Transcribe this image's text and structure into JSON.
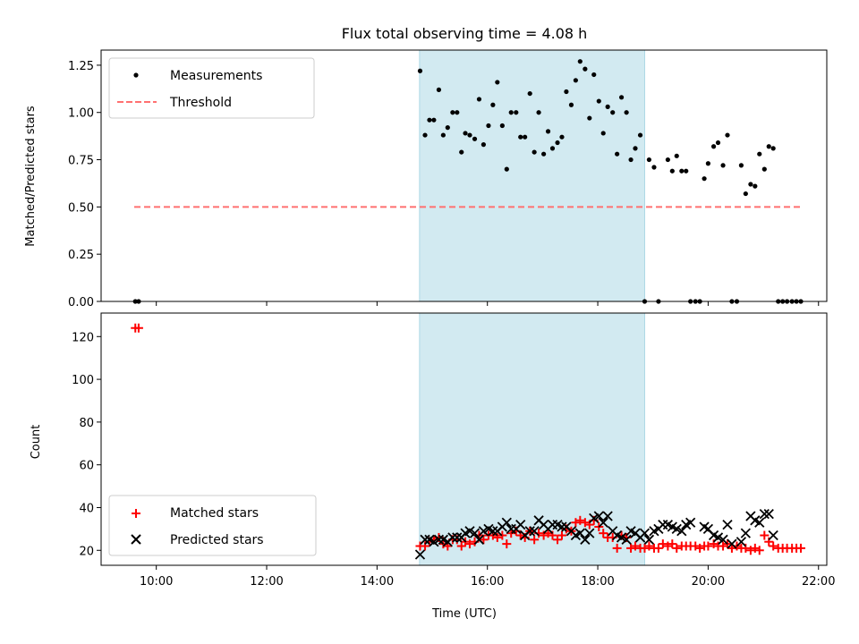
{
  "chart_data": [
    {
      "type": "scatter",
      "title": "Flux total observing time = 4.08 h",
      "xlabel": "",
      "ylabel": "Matched/Predicted stars",
      "xlim": [
        9.0,
        22.15
      ],
      "ylim": [
        0.0,
        1.33
      ],
      "xticks_hours": [
        10,
        12,
        14,
        16,
        18,
        20,
        22
      ],
      "yticks": [
        "0.00",
        "0.25",
        "0.50",
        "0.75",
        "1.00",
        "1.25"
      ],
      "ytick_values": [
        0.0,
        0.25,
        0.5,
        0.75,
        1.0,
        1.25
      ],
      "shaded_span_hours": [
        14.77,
        18.85
      ],
      "shade_color": "#add8e6",
      "legend": {
        "placement": "upper-left",
        "entries": [
          "Measurements",
          "Threshold"
        ]
      },
      "threshold": {
        "name": "Threshold",
        "value": 0.5,
        "x_range": [
          9.6,
          21.7
        ],
        "color": "#ff7070",
        "style": "dashed"
      },
      "series": [
        {
          "name": "Measurements",
          "marker": "dot",
          "color": "#000000",
          "x": [
            9.62,
            9.68,
            14.78,
            14.87,
            14.95,
            15.03,
            15.12,
            15.2,
            15.28,
            15.37,
            15.45,
            15.53,
            15.6,
            15.68,
            15.77,
            15.85,
            15.93,
            16.02,
            16.1,
            16.18,
            16.27,
            16.35,
            16.43,
            16.52,
            16.6,
            16.68,
            16.77,
            16.85,
            16.93,
            17.02,
            17.1,
            17.18,
            17.27,
            17.35,
            17.43,
            17.52,
            17.6,
            17.68,
            17.77,
            17.85,
            17.93,
            18.02,
            18.1,
            18.18,
            18.27,
            18.35,
            18.43,
            18.52,
            18.6,
            18.68,
            18.77,
            18.85,
            18.93,
            19.02,
            19.1,
            19.27,
            19.35,
            19.43,
            19.52,
            19.6,
            19.68,
            19.77,
            19.85,
            19.93,
            20.0,
            20.1,
            20.18,
            20.27,
            20.35,
            20.43,
            20.52,
            20.6,
            20.68,
            20.77,
            20.85,
            20.93,
            21.02,
            21.1,
            21.18,
            21.27,
            21.35,
            21.43,
            21.52,
            21.6,
            21.68
          ],
          "y": [
            0,
            0,
            1.22,
            0.88,
            0.96,
            0.96,
            1.12,
            0.88,
            0.92,
            1.0,
            1.0,
            0.79,
            0.89,
            0.88,
            0.86,
            1.07,
            0.83,
            0.93,
            1.04,
            1.16,
            0.93,
            0.7,
            1.0,
            1.0,
            0.87,
            0.87,
            1.1,
            0.79,
            1.0,
            0.78,
            0.9,
            0.81,
            0.84,
            0.87,
            1.11,
            1.04,
            1.17,
            1.27,
            1.23,
            0.97,
            1.2,
            1.06,
            0.89,
            1.03,
            1.0,
            0.78,
            1.08,
            1.0,
            0.75,
            0.81,
            0.88,
            0,
            0.75,
            0.71,
            0,
            0.75,
            0.69,
            0.77,
            0.69,
            0.69,
            0,
            0,
            0,
            0.65,
            0.73,
            0.82,
            0.84,
            0.72,
            0.88,
            0,
            0,
            0.72,
            0.57,
            0.62,
            0.61,
            0.78,
            0.7,
            0.82,
            0.81,
            0,
            0,
            0,
            0,
            0,
            0
          ]
        }
      ]
    },
    {
      "type": "scatter",
      "title": "",
      "xlabel": "Time (UTC)",
      "ylabel": "Count",
      "xlim": [
        9.0,
        22.15
      ],
      "ylim": [
        13,
        131
      ],
      "xticks_hours": [
        10,
        12,
        14,
        16,
        18,
        20,
        22
      ],
      "xtick_labels": [
        "10:00",
        "12:00",
        "14:00",
        "16:00",
        "18:00",
        "20:00",
        "22:00"
      ],
      "yticks": [
        "20",
        "40",
        "60",
        "80",
        "100",
        "120"
      ],
      "ytick_values": [
        20,
        40,
        60,
        80,
        100,
        120
      ],
      "shaded_span_hours": [
        14.77,
        18.85
      ],
      "shade_color": "#add8e6",
      "legend": {
        "placement": "lower-left",
        "entries": [
          "Matched stars",
          "Predicted stars"
        ]
      },
      "series": [
        {
          "name": "Matched stars",
          "marker": "plus",
          "color": "#ff0000",
          "x": [
            9.62,
            9.68,
            14.78,
            14.87,
            14.95,
            15.03,
            15.12,
            15.2,
            15.28,
            15.37,
            15.45,
            15.53,
            15.6,
            15.68,
            15.77,
            15.85,
            15.93,
            16.02,
            16.1,
            16.18,
            16.27,
            16.35,
            16.43,
            16.52,
            16.6,
            16.68,
            16.77,
            16.85,
            16.93,
            17.02,
            17.1,
            17.18,
            17.27,
            17.35,
            17.43,
            17.52,
            17.6,
            17.68,
            17.77,
            17.85,
            17.93,
            18.02,
            18.1,
            18.18,
            18.27,
            18.35,
            18.43,
            18.52,
            18.6,
            18.68,
            18.77,
            18.85,
            18.93,
            19.02,
            19.1,
            19.18,
            19.27,
            19.35,
            19.43,
            19.52,
            19.6,
            19.68,
            19.77,
            19.85,
            19.93,
            20.0,
            20.1,
            20.18,
            20.27,
            20.35,
            20.43,
            20.52,
            20.6,
            20.68,
            20.77,
            20.85,
            20.93,
            21.02,
            21.1,
            21.18,
            21.27,
            21.35,
            21.43,
            21.52,
            21.6,
            21.68
          ],
          "y": [
            124,
            124,
            22,
            22,
            24,
            25,
            26,
            23,
            22,
            25,
            25,
            22,
            24,
            23,
            24,
            27,
            25,
            27,
            27,
            26,
            27,
            23,
            28,
            29,
            27,
            26,
            29,
            25,
            28,
            27,
            28,
            27,
            25,
            27,
            30,
            29,
            33,
            34,
            33,
            32,
            34,
            31,
            28,
            26,
            26,
            21,
            27,
            26,
            21,
            22,
            21,
            21,
            22,
            21,
            21,
            23,
            22,
            23,
            21,
            22,
            22,
            22,
            22,
            21,
            22,
            22,
            23,
            22,
            22,
            23,
            21,
            22,
            21,
            21,
            20,
            21,
            20,
            27,
            24,
            22,
            21,
            21,
            21,
            21,
            21,
            21
          ]
        },
        {
          "name": "Predicted stars",
          "marker": "x",
          "color": "#000000",
          "x": [
            14.78,
            14.87,
            14.95,
            15.03,
            15.12,
            15.2,
            15.28,
            15.37,
            15.45,
            15.53,
            15.6,
            15.68,
            15.77,
            15.85,
            15.93,
            16.02,
            16.1,
            16.18,
            16.27,
            16.35,
            16.43,
            16.52,
            16.6,
            16.68,
            16.77,
            16.85,
            16.93,
            17.02,
            17.1,
            17.18,
            17.27,
            17.35,
            17.43,
            17.52,
            17.6,
            17.68,
            17.77,
            17.85,
            17.93,
            18.02,
            18.1,
            18.18,
            18.27,
            18.35,
            18.43,
            18.52,
            18.6,
            18.68,
            18.77,
            18.85,
            18.93,
            19.02,
            19.1,
            19.18,
            19.27,
            19.35,
            19.43,
            19.52,
            19.6,
            19.68,
            19.93,
            20.0,
            20.1,
            20.18,
            20.27,
            20.35,
            20.43,
            20.6,
            20.68,
            20.77,
            20.85,
            20.93,
            21.02,
            21.1,
            21.18
          ],
          "y": [
            18,
            25,
            25,
            24,
            25,
            25,
            24,
            26,
            26,
            26,
            28,
            29,
            28,
            25,
            29,
            30,
            29,
            29,
            31,
            33,
            30,
            30,
            32,
            27,
            29,
            29,
            34,
            32,
            30,
            32,
            32,
            31,
            31,
            29,
            27,
            28,
            25,
            28,
            35,
            36,
            33,
            36,
            29,
            27,
            26,
            25,
            29,
            28,
            26,
            28,
            25,
            29,
            30,
            32,
            32,
            31,
            30,
            29,
            32,
            33,
            31,
            30,
            27,
            26,
            25,
            32,
            23,
            24,
            28,
            36,
            34,
            33,
            37,
            37,
            27
          ]
        }
      ]
    }
  ]
}
